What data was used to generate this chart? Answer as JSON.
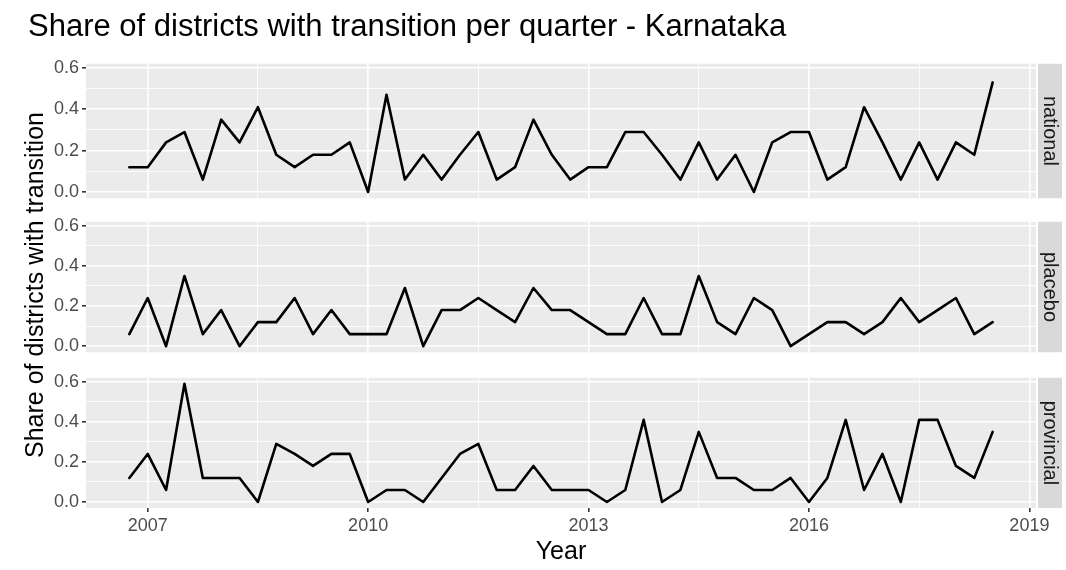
{
  "chart_data": [
    {
      "type": "line",
      "title": "Share of districts with transition per quarter - Karnataka",
      "x": [
        2006.75,
        2007,
        2007.25,
        2007.5,
        2007.75,
        2008,
        2008.25,
        2008.5,
        2008.75,
        2009,
        2009.25,
        2009.5,
        2009.75,
        2010,
        2010.25,
        2010.5,
        2010.75,
        2011,
        2011.25,
        2011.5,
        2011.75,
        2012,
        2012.25,
        2012.5,
        2012.75,
        2013,
        2013.25,
        2013.5,
        2013.75,
        2014,
        2014.25,
        2014.5,
        2014.75,
        2015,
        2015.25,
        2015.5,
        2015.75,
        2016,
        2016.25,
        2016.5,
        2016.75,
        2017,
        2017.25,
        2017.5,
        2017.75,
        2018,
        2018.25,
        2018.5
      ],
      "series": [
        {
          "name": "national",
          "color": "#000000",
          "values": [
            0.12,
            0.12,
            0.24,
            0.29,
            0.06,
            0.35,
            0.24,
            0.41,
            0.18,
            0.12,
            0.18,
            0.18,
            0.24,
            0,
            0.47,
            0.06,
            0.18,
            0.06,
            0.18,
            0.29,
            0.06,
            0.12,
            0.35,
            0.18,
            0.06,
            0.12,
            0.12,
            0.29,
            0.29,
            0.18,
            0.06,
            0.24,
            0.06,
            0.18,
            0,
            0.24,
            0.29,
            0.29,
            0.06,
            0.12,
            0.41,
            0.24,
            0.06,
            0.24,
            0.06,
            0.24,
            0.18,
            0.53
          ]
        }
      ],
      "xlim": [
        2006.16,
        2019.09
      ],
      "xticks": [
        2007,
        {
          "value": 2008.5,
          "label": null
        },
        2010,
        {
          "value": 2011.5,
          "label": null
        },
        2013,
        {
          "value": 2014.5,
          "label": null
        },
        2016,
        {
          "value": 2017.5,
          "label": null
        },
        2019
      ],
      "ylim": [
        -0.03,
        0.62
      ],
      "yticks": [
        {
          "value": 0,
          "label": "0.0"
        },
        {
          "value": 0.1,
          "label": null
        },
        {
          "value": 0.2,
          "label": "0.2"
        },
        {
          "value": 0.3,
          "label": null
        },
        {
          "value": 0.4,
          "label": "0.4"
        },
        {
          "value": 0.5,
          "label": null
        },
        {
          "value": 0.6,
          "label": "0.6"
        }
      ],
      "grid": true,
      "legend": false,
      "marker": "none",
      "line_style": "solid",
      "tick_labels": "y"
    },
    {
      "type": "line",
      "ylabel": "Share of districts with transition",
      "x": [
        2006.75,
        2007,
        2007.25,
        2007.5,
        2007.75,
        2008,
        2008.25,
        2008.5,
        2008.75,
        2009,
        2009.25,
        2009.5,
        2009.75,
        2010,
        2010.25,
        2010.5,
        2010.75,
        2011,
        2011.25,
        2011.5,
        2011.75,
        2012,
        2012.25,
        2012.5,
        2012.75,
        2013,
        2013.25,
        2013.5,
        2013.75,
        2014,
        2014.25,
        2014.5,
        2014.75,
        2015,
        2015.25,
        2015.5,
        2015.75,
        2016,
        2016.25,
        2016.5,
        2016.75,
        2017,
        2017.25,
        2017.5,
        2017.75,
        2018,
        2018.25,
        2018.5
      ],
      "series": [
        {
          "name": "placebo",
          "color": "#000000",
          "values": [
            0.06,
            0.24,
            0,
            0.35,
            0.06,
            0.18,
            0,
            0.12,
            0.12,
            0.24,
            0.06,
            0.18,
            0.06,
            0.06,
            0.06,
            0.29,
            0,
            0.18,
            0.18,
            0.24,
            0.18,
            0.12,
            0.29,
            0.18,
            0.18,
            0.12,
            0.06,
            0.06,
            0.24,
            0.06,
            0.06,
            0.35,
            0.12,
            0.06,
            0.24,
            0.18,
            0,
            0.06,
            0.12,
            0.12,
            0.06,
            0.12,
            0.24,
            0.12,
            0.18,
            0.24,
            0.06,
            0.12
          ]
        }
      ],
      "xlim": [
        2006.16,
        2019.09
      ],
      "xticks": [
        2007,
        {
          "value": 2008.5,
          "label": null
        },
        2010,
        {
          "value": 2011.5,
          "label": null
        },
        2013,
        {
          "value": 2014.5,
          "label": null
        },
        2016,
        {
          "value": 2017.5,
          "label": null
        },
        2019
      ],
      "ylim": [
        -0.03,
        0.62
      ],
      "yticks": [
        {
          "value": 0,
          "label": "0.0"
        },
        {
          "value": 0.1,
          "label": null
        },
        {
          "value": 0.2,
          "label": "0.2"
        },
        {
          "value": 0.3,
          "label": null
        },
        {
          "value": 0.4,
          "label": "0.4"
        },
        {
          "value": 0.5,
          "label": null
        },
        {
          "value": 0.6,
          "label": "0.6"
        }
      ],
      "grid": true,
      "legend": false,
      "marker": "none",
      "line_style": "solid",
      "tick_labels": "y"
    },
    {
      "type": "line",
      "xlabel": "Year",
      "x": [
        2006.75,
        2007,
        2007.25,
        2007.5,
        2007.75,
        2008,
        2008.25,
        2008.5,
        2008.75,
        2009,
        2009.25,
        2009.5,
        2009.75,
        2010,
        2010.25,
        2010.5,
        2010.75,
        2011,
        2011.25,
        2011.5,
        2011.75,
        2012,
        2012.25,
        2012.5,
        2012.75,
        2013,
        2013.25,
        2013.5,
        2013.75,
        2014,
        2014.25,
        2014.5,
        2014.75,
        2015,
        2015.25,
        2015.5,
        2015.75,
        2016,
        2016.25,
        2016.5,
        2016.75,
        2017,
        2017.25,
        2017.5,
        2017.75,
        2018,
        2018.25,
        2018.5
      ],
      "series": [
        {
          "name": "provincial",
          "color": "#000000",
          "values": [
            0.12,
            0.24,
            0.06,
            0.59,
            0.12,
            0.12,
            0.12,
            0,
            0.29,
            0.24,
            0.18,
            0.24,
            0.24,
            0,
            0.06,
            0.06,
            0,
            0.12,
            0.24,
            0.29,
            0.06,
            0.06,
            0.18,
            0.06,
            0.06,
            0.06,
            0,
            0.06,
            0.41,
            0,
            0.06,
            0.35,
            0.12,
            0.12,
            0.06,
            0.06,
            0.12,
            0,
            0.12,
            0.41,
            0.06,
            0.24,
            0,
            0.41,
            0.41,
            0.18,
            0.12,
            0.35
          ]
        }
      ],
      "xlim": [
        2006.16,
        2019.09
      ],
      "xticks": [
        2007,
        {
          "value": 2008.5,
          "label": null
        },
        2010,
        {
          "value": 2011.5,
          "label": null
        },
        2013,
        {
          "value": 2014.5,
          "label": null
        },
        2016,
        {
          "value": 2017.5,
          "label": null
        },
        2019
      ],
      "ylim": [
        -0.03,
        0.62
      ],
      "yticks": [
        {
          "value": 0,
          "label": "0.0"
        },
        {
          "value": 0.1,
          "label": null
        },
        {
          "value": 0.2,
          "label": "0.2"
        },
        {
          "value": 0.3,
          "label": null
        },
        {
          "value": 0.4,
          "label": "0.4"
        },
        {
          "value": 0.5,
          "label": null
        },
        {
          "value": 0.6,
          "label": "0.6"
        }
      ],
      "grid": true,
      "legend": false,
      "marker": "none",
      "line_style": "solid"
    }
  ]
}
